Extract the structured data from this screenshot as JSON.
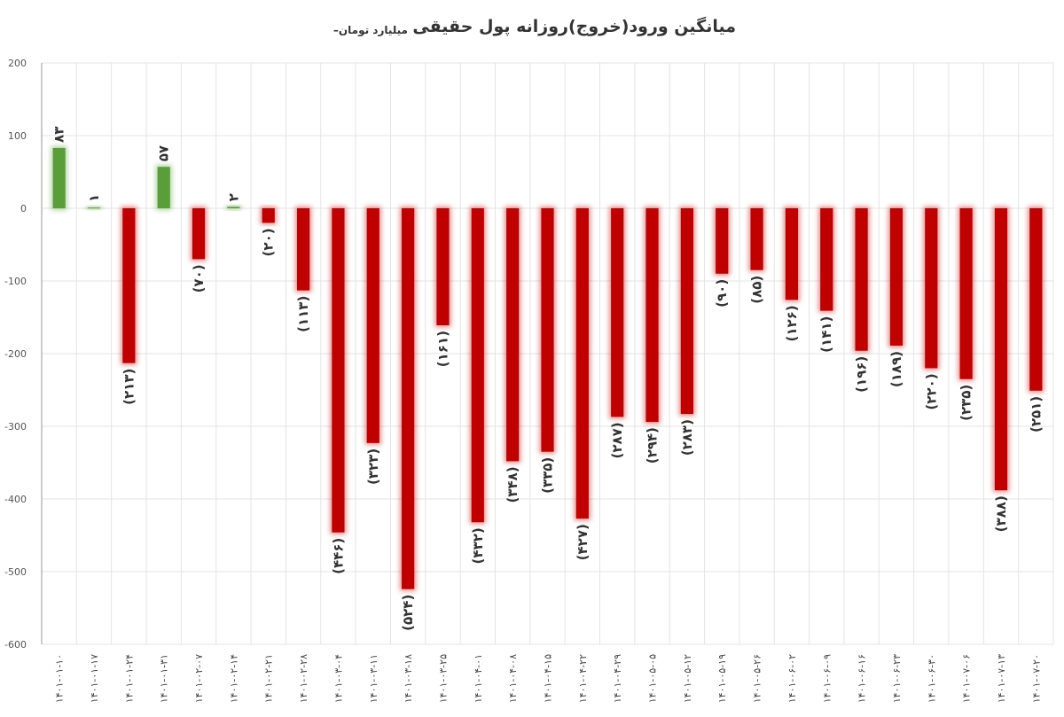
{
  "chart_data": {
    "type": "bar",
    "title": "میانگین ورود(خروج)روزانه پول حقیقی",
    "subtitle": "–میلیارد تومان",
    "categories": [
      "۱۴۰۱-۰۱-۱۰",
      "۱۴۰۱-۰۱-۱۷",
      "۱۴۰۱-۰۱-۲۴",
      "۱۴۰۱-۰۱-۳۱",
      "۱۴۰۱-۰۲-۰۷",
      "۱۴۰۱-۰۲-۱۴",
      "۱۴۰۱-۰۲-۲۱",
      "۱۴۰۱-۰۲-۲۸",
      "۱۴۰۱-۰۳-۰۴",
      "۱۴۰۱-۰۳-۱۱",
      "۱۴۰۱-۰۳-۱۸",
      "۱۴۰۱-۰۳-۲۵",
      "۱۴۰۱-۰۴-۰۱",
      "۱۴۰۱-۰۴-۰۸",
      "۱۴۰۱-۰۴-۱۵",
      "۱۴۰۱-۰۴-۲۲",
      "۱۴۰۱-۰۴-۲۹",
      "۱۴۰۱-۰۵-۰۵",
      "۱۴۰۱-۰۵-۱۲",
      "۱۴۰۱-۰۵-۱۹",
      "۱۴۰۱-۰۵-۲۶",
      "۱۴۰۱-۰۶-۰۲",
      "۱۴۰۱-۰۶-۰۹",
      "۱۴۰۱-۰۶-۱۶",
      "۱۴۰۱-۰۶-۲۳",
      "۱۴۰۱-۰۶-۳۰",
      "۱۴۰۱-۰۷-۰۶",
      "۱۴۰۱-۰۷-۱۳",
      "۱۴۰۱-۰۷-۲۰"
    ],
    "values": [
      83,
      1,
      -213,
      57,
      -70,
      2,
      -20,
      -113,
      -446,
      -323,
      -524,
      -161,
      -432,
      -348,
      -335,
      -427,
      -287,
      -294,
      -283,
      -90,
      -85,
      -126,
      -141,
      -196,
      -189,
      -220,
      -235,
      -388,
      -251
    ],
    "value_labels": [
      "۸۳",
      "۱",
      "(۲۱۳)",
      "۵۷",
      "(۷۰)",
      "۲",
      "(۲۰)",
      "(۱۱۳)",
      "(۴۴۶)",
      "(۳۲۳)",
      "(۵۲۴)",
      "(۱۶۱)",
      "(۴۳۲)",
      "(۳۴۸)",
      "(۳۳۵)",
      "(۴۲۷)",
      "(۲۸۷)",
      "(۲۹۴)",
      "(۲۸۳)",
      "(۹۰)",
      "(۸۵)",
      "(۱۲۶)",
      "(۱۴۱)",
      "(۱۹۶)",
      "(۱۸۹)",
      "(۲۲۰)",
      "(۲۳۵)",
      "(۳۸۸)",
      "(۲۵۱)"
    ],
    "positive_color": "#5a9e3a",
    "negative_color": "#c00000",
    "ylim": [
      -600,
      200
    ],
    "yticks": [
      200,
      100,
      0,
      -100,
      -200,
      -300,
      -400,
      -500,
      -600
    ],
    "grid": true
  }
}
